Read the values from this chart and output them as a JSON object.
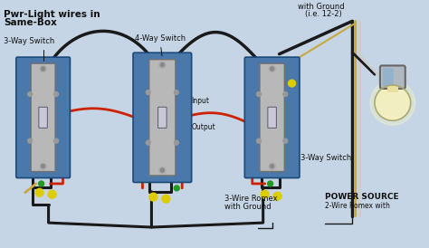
{
  "bg_color": "#c5d5e5",
  "title1": "Pwr-Light wires in",
  "title2": "Same-Box",
  "label_3way_left": "3-Way Switch",
  "label_4way": "4-Way Switch",
  "label_3way_right": "3-Way Switch",
  "label_input": "Input",
  "label_output": "Output",
  "label_ground_top": "with Ground",
  "label_ie": "(i.e. 12-2)",
  "label_3wire": "3-Wire Romex",
  "label_3wire2": "with Ground",
  "label_power": "POWER SOURCE",
  "label_2wire": "2-Wire Romex with",
  "black": "#1a1a1a",
  "red": "#cc2200",
  "white_wire": "#cccccc",
  "green": "#229922",
  "yellow": "#ddcc00",
  "bare": "#c8a840",
  "box_blue": "#4a78aa",
  "box_edge": "#1a4a7a",
  "switch_gray": "#b8b8b8",
  "switch_edge": "#888888",
  "bg_light": "#dde8f0"
}
